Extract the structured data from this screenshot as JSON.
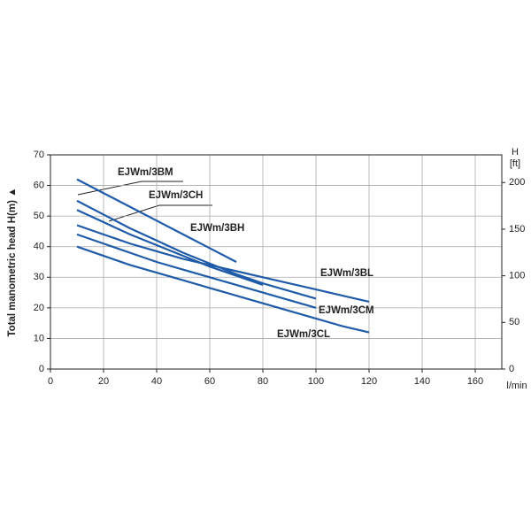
{
  "chart_data": {
    "type": "line",
    "y_label": "Total manometric head H(m) ▲",
    "x_unit": "l/min",
    "y2_label": "H",
    "y2_unit": "[ft]",
    "x": [
      10,
      20,
      30,
      40,
      50,
      60,
      70,
      80,
      90,
      100,
      110,
      120
    ],
    "series": [
      {
        "name": "EJWm/3BH",
        "color": "#1f5ba8",
        "values": [
          62,
          57.5,
          53,
          48.5,
          44,
          39.5,
          35,
          null,
          null,
          null,
          null,
          null
        ]
      },
      {
        "name": "EJWm/3BM",
        "color": "#1f5ba8",
        "values": [
          55,
          50.5,
          46,
          42,
          38,
          34.5,
          31,
          28,
          25.5,
          23,
          null,
          null
        ]
      },
      {
        "name": "EJWm/3CH",
        "color": "#1f5ba8",
        "values": [
          52,
          48,
          44,
          40.5,
          37,
          33.5,
          30.5,
          27.5,
          null,
          null,
          null,
          null
        ]
      },
      {
        "name": "EJWm/3BL",
        "color": "#1f5ba8",
        "values": [
          47,
          44,
          41,
          38.5,
          36,
          34,
          32,
          30,
          28,
          26,
          24,
          22
        ]
      },
      {
        "name": "EJWm/3CM",
        "color": "#1f5ba8",
        "values": [
          44,
          41,
          38,
          35,
          32.5,
          30,
          27.5,
          25,
          22.5,
          20,
          null,
          null
        ]
      },
      {
        "name": "EJWm/3CL",
        "color": "#1f5ba8",
        "values": [
          40,
          37,
          34,
          31.5,
          29,
          26.5,
          24,
          21.5,
          19,
          16.5,
          14,
          12
        ]
      }
    ],
    "xlim": [
      0,
      170
    ],
    "xticks": [
      0,
      20,
      40,
      60,
      80,
      100,
      120,
      140,
      160
    ],
    "ylim": [
      0,
      70
    ],
    "yticks": [
      0,
      10,
      20,
      30,
      40,
      50,
      60,
      70
    ],
    "y2lim": [
      0,
      229.66
    ],
    "y2ticks": [
      0,
      50,
      100,
      150,
      200
    ],
    "grid": true
  }
}
